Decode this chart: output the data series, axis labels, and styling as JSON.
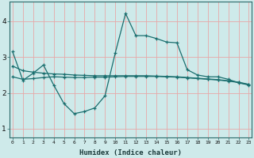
{
  "xlabel": "Humidex (Indice chaleur)",
  "background_color": "#ceeaea",
  "grid_color": "#e8a8a8",
  "line_color": "#1a6e6e",
  "x_ticks": [
    0,
    1,
    2,
    3,
    4,
    5,
    6,
    7,
    8,
    9,
    10,
    11,
    12,
    13,
    14,
    15,
    16,
    17,
    18,
    19,
    20,
    21,
    22,
    23
  ],
  "ylim": [
    0.75,
    4.55
  ],
  "xlim": [
    -0.3,
    23.3
  ],
  "yticks": [
    1,
    2,
    3,
    4
  ],
  "series1_x": [
    0,
    1,
    2,
    3,
    4,
    5,
    6,
    7,
    8,
    9,
    10,
    11,
    12,
    13,
    14,
    15,
    16,
    17,
    18,
    19,
    20,
    21,
    22,
    23
  ],
  "series1_y": [
    3.15,
    2.35,
    2.55,
    2.78,
    2.22,
    1.7,
    1.42,
    1.48,
    1.58,
    1.92,
    3.12,
    4.22,
    3.6,
    3.6,
    3.52,
    3.42,
    3.4,
    2.65,
    2.5,
    2.45,
    2.45,
    2.38,
    2.28,
    2.22
  ],
  "series2_x": [
    0,
    1,
    2,
    3,
    4,
    5,
    6,
    7,
    8,
    9,
    10,
    11,
    12,
    13,
    14,
    15,
    16,
    17,
    18,
    19,
    20,
    21,
    22,
    23
  ],
  "series2_y": [
    2.75,
    2.62,
    2.58,
    2.55,
    2.53,
    2.52,
    2.5,
    2.49,
    2.48,
    2.48,
    2.48,
    2.48,
    2.48,
    2.48,
    2.47,
    2.46,
    2.45,
    2.43,
    2.41,
    2.39,
    2.37,
    2.34,
    2.3,
    2.24
  ],
  "series3_x": [
    0,
    1,
    2,
    3,
    4,
    5,
    6,
    7,
    8,
    9,
    10,
    11,
    12,
    13,
    14,
    15,
    16,
    17,
    18,
    19,
    20,
    21,
    22,
    23
  ],
  "series3_y": [
    2.45,
    2.38,
    2.4,
    2.43,
    2.45,
    2.44,
    2.43,
    2.43,
    2.44,
    2.44,
    2.45,
    2.46,
    2.46,
    2.46,
    2.46,
    2.45,
    2.44,
    2.42,
    2.4,
    2.38,
    2.36,
    2.33,
    2.29,
    2.23
  ]
}
